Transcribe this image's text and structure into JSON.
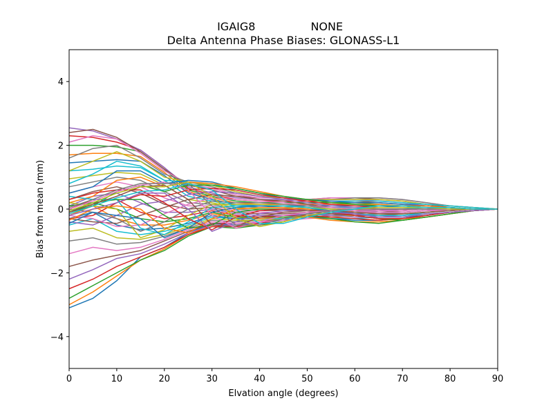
{
  "header": {
    "left": "IGAIG8",
    "right": "NONE"
  },
  "chart_data": {
    "type": "line",
    "title": "Delta Antenna Phase Biases: GLONASS-L1",
    "xlabel": "Elvation angle (degrees)",
    "ylabel": "Bias from mean (mm)",
    "xlim": [
      0,
      90
    ],
    "ylim": [
      -5,
      5
    ],
    "xticks": [
      0,
      10,
      20,
      30,
      40,
      50,
      60,
      70,
      80,
      90
    ],
    "yticks": [
      -4,
      -2,
      0,
      2,
      4
    ],
    "ytick_labels": [
      "−4",
      "−2",
      "0",
      "2",
      "4"
    ],
    "grid": false,
    "legend": "none",
    "colors": [
      "#1f77b4",
      "#ff7f0e",
      "#2ca02c",
      "#d62728",
      "#9467bd",
      "#8c564b",
      "#e377c2",
      "#7f7f7f",
      "#bcbd22",
      "#17becf"
    ],
    "x": [
      0,
      5,
      10,
      15,
      20,
      25,
      30,
      35,
      40,
      45,
      50,
      55,
      60,
      65,
      70,
      75,
      80,
      85,
      90
    ],
    "series": [
      {
        "values": [
          -3.1,
          -2.8,
          -2.25,
          -1.5,
          -1.2,
          -0.75,
          -0.45,
          -0.5,
          -0.45,
          -0.35,
          -0.15,
          -0.05,
          0.0,
          0.0,
          0.0,
          0.0,
          0.0,
          0.0,
          0.0
        ]
      },
      {
        "values": [
          -3.0,
          -2.6,
          -2.1,
          -1.6,
          -1.25,
          -0.8,
          -0.5,
          -0.55,
          -0.5,
          -0.4,
          -0.2,
          -0.1,
          -0.05,
          0.0,
          0.0,
          0.0,
          0.0,
          0.0,
          0.0
        ]
      },
      {
        "values": [
          -2.8,
          -2.4,
          -2.0,
          -1.6,
          -1.3,
          -0.85,
          -0.55,
          -0.6,
          -0.5,
          -0.4,
          -0.2,
          -0.15,
          -0.1,
          -0.05,
          0.0,
          0.0,
          0.0,
          0.0,
          0.0
        ]
      },
      {
        "values": [
          -2.5,
          -2.2,
          -1.8,
          -1.5,
          -1.2,
          -0.8,
          -0.55,
          -0.55,
          -0.45,
          -0.3,
          -0.2,
          -0.1,
          -0.05,
          0.0,
          0.0,
          0.0,
          0.0,
          0.0,
          0.0
        ]
      },
      {
        "values": [
          -2.2,
          -1.9,
          -1.55,
          -1.4,
          -1.1,
          -0.75,
          -0.5,
          -0.5,
          -0.4,
          -0.3,
          -0.2,
          -0.15,
          -0.1,
          -0.05,
          0.0,
          0.0,
          0.0,
          0.0,
          0.0
        ]
      },
      {
        "values": [
          -1.8,
          -1.6,
          -1.45,
          -1.3,
          -1.0,
          -0.7,
          -0.45,
          -0.45,
          -0.4,
          -0.3,
          -0.25,
          -0.2,
          -0.15,
          -0.1,
          -0.05,
          0.0,
          0.0,
          0.0,
          0.0
        ]
      },
      {
        "values": [
          -1.4,
          -1.2,
          -1.3,
          -1.2,
          -0.95,
          -0.65,
          -0.4,
          -0.45,
          -0.4,
          -0.35,
          -0.3,
          -0.25,
          -0.2,
          -0.15,
          -0.1,
          -0.05,
          0.0,
          0.0,
          0.0
        ]
      },
      {
        "values": [
          -1.0,
          -0.9,
          -1.1,
          -1.05,
          -0.85,
          -0.6,
          -0.35,
          -0.4,
          -0.35,
          -0.3,
          -0.25,
          -0.2,
          -0.2,
          -0.15,
          -0.1,
          -0.05,
          0.0,
          0.0,
          0.0
        ]
      },
      {
        "values": [
          -0.7,
          -0.6,
          -0.9,
          -0.95,
          -0.8,
          -0.55,
          -0.3,
          -0.35,
          -0.35,
          -0.3,
          -0.25,
          -0.25,
          -0.2,
          -0.2,
          -0.15,
          -0.1,
          -0.05,
          0.0,
          0.0
        ]
      },
      {
        "values": [
          -0.5,
          -0.3,
          -0.7,
          -0.8,
          -0.7,
          -0.5,
          -0.25,
          -0.3,
          -0.3,
          -0.3,
          -0.25,
          -0.3,
          -0.3,
          -0.25,
          -0.2,
          -0.1,
          -0.05,
          0.0,
          0.0
        ]
      },
      {
        "values": [
          -0.3,
          -0.1,
          -0.5,
          -0.65,
          -0.6,
          -0.45,
          -0.2,
          -0.3,
          -0.3,
          -0.25,
          -0.25,
          -0.3,
          -0.35,
          -0.35,
          -0.3,
          -0.2,
          -0.1,
          -0.05,
          0.0
        ]
      },
      {
        "values": [
          -0.2,
          0.1,
          -0.3,
          -0.5,
          -0.5,
          -0.35,
          -0.15,
          -0.25,
          -0.3,
          -0.25,
          -0.25,
          -0.35,
          -0.4,
          -0.4,
          -0.35,
          -0.25,
          -0.15,
          -0.05,
          0.0
        ]
      },
      {
        "values": [
          -0.1,
          0.2,
          0.0,
          -0.3,
          -0.4,
          -0.3,
          -0.1,
          -0.25,
          -0.25,
          -0.25,
          -0.2,
          -0.3,
          -0.4,
          -0.45,
          -0.35,
          -0.25,
          -0.15,
          -0.05,
          0.0
        ]
      },
      {
        "values": [
          0.0,
          0.3,
          0.3,
          -0.1,
          -0.3,
          -0.2,
          -0.05,
          -0.2,
          -0.25,
          -0.2,
          -0.2,
          -0.25,
          -0.3,
          -0.35,
          -0.3,
          -0.2,
          -0.1,
          -0.05,
          0.0
        ]
      },
      {
        "values": [
          0.1,
          0.4,
          0.5,
          0.2,
          -0.1,
          -0.1,
          0.0,
          -0.15,
          -0.2,
          -0.2,
          -0.15,
          -0.2,
          -0.25,
          -0.25,
          -0.2,
          -0.15,
          -0.1,
          -0.05,
          0.0
        ]
      },
      {
        "values": [
          0.3,
          0.55,
          0.7,
          0.5,
          0.15,
          0.0,
          0.05,
          -0.1,
          -0.15,
          -0.15,
          -0.1,
          -0.15,
          -0.2,
          -0.2,
          -0.15,
          -0.1,
          -0.05,
          0.0,
          0.0
        ]
      },
      {
        "values": [
          0.5,
          0.7,
          0.85,
          0.7,
          0.35,
          0.1,
          0.1,
          -0.05,
          -0.1,
          -0.1,
          -0.05,
          -0.1,
          -0.1,
          -0.1,
          -0.1,
          -0.05,
          -0.05,
          0.0,
          0.0
        ]
      },
      {
        "values": [
          0.7,
          0.85,
          1.0,
          0.9,
          0.55,
          0.2,
          0.15,
          0.0,
          -0.05,
          -0.05,
          0.0,
          -0.05,
          -0.05,
          -0.05,
          -0.05,
          0.0,
          0.0,
          0.0,
          0.0
        ]
      },
      {
        "values": [
          0.95,
          1.05,
          1.15,
          1.1,
          0.75,
          0.3,
          0.2,
          0.05,
          0.0,
          0.0,
          0.05,
          0.0,
          0.0,
          0.0,
          0.0,
          0.0,
          0.0,
          0.0,
          0.0
        ]
      },
      {
        "values": [
          1.2,
          1.25,
          1.35,
          1.3,
          0.9,
          0.4,
          0.25,
          0.1,
          0.05,
          0.05,
          0.1,
          0.05,
          0.05,
          0.05,
          0.05,
          0.0,
          0.0,
          0.0,
          0.0
        ]
      },
      {
        "values": [
          1.45,
          1.5,
          1.55,
          1.5,
          1.05,
          0.5,
          0.3,
          0.15,
          0.1,
          0.1,
          0.1,
          0.1,
          0.1,
          0.1,
          0.05,
          0.05,
          0.0,
          0.0,
          0.0
        ]
      },
      {
        "values": [
          1.7,
          1.75,
          1.75,
          1.65,
          1.15,
          0.55,
          0.35,
          0.2,
          0.15,
          0.15,
          0.15,
          0.15,
          0.15,
          0.1,
          0.1,
          0.05,
          0.05,
          0.0,
          0.0
        ]
      },
      {
        "values": [
          2.0,
          2.0,
          1.95,
          1.8,
          1.25,
          0.6,
          0.4,
          0.25,
          0.2,
          0.2,
          0.2,
          0.2,
          0.2,
          0.15,
          0.1,
          0.05,
          0.05,
          0.0,
          0.0
        ]
      },
      {
        "values": [
          2.3,
          2.25,
          2.1,
          1.85,
          1.3,
          0.65,
          0.45,
          0.3,
          0.25,
          0.25,
          0.25,
          0.25,
          0.25,
          0.2,
          0.15,
          0.1,
          0.05,
          0.0,
          0.0
        ]
      },
      {
        "values": [
          2.55,
          2.45,
          2.2,
          1.85,
          1.3,
          0.7,
          0.5,
          0.35,
          0.3,
          0.3,
          0.3,
          0.3,
          0.3,
          0.25,
          0.2,
          0.1,
          0.05,
          0.0,
          0.0
        ]
      },
      {
        "values": [
          2.4,
          2.5,
          2.25,
          1.8,
          1.25,
          0.75,
          0.6,
          0.4,
          0.35,
          0.35,
          0.3,
          0.35,
          0.35,
          0.3,
          0.25,
          0.15,
          0.05,
          0.0,
          0.0
        ]
      },
      {
        "values": [
          2.1,
          2.3,
          2.2,
          1.75,
          1.2,
          0.8,
          0.65,
          0.45,
          0.35,
          0.35,
          0.3,
          0.35,
          0.35,
          0.35,
          0.3,
          0.2,
          0.1,
          0.05,
          0.0
        ]
      },
      {
        "values": [
          1.6,
          1.9,
          2.0,
          1.6,
          1.1,
          0.85,
          0.7,
          0.5,
          0.4,
          0.35,
          0.3,
          0.3,
          0.35,
          0.35,
          0.3,
          0.2,
          0.1,
          0.05,
          0.0
        ]
      },
      {
        "values": [
          1.2,
          1.5,
          1.8,
          1.5,
          1.0,
          0.85,
          0.75,
          0.55,
          0.4,
          0.35,
          0.3,
          0.3,
          0.3,
          0.3,
          0.25,
          0.15,
          0.1,
          0.05,
          0.0
        ]
      },
      {
        "values": [
          0.8,
          1.1,
          1.5,
          1.35,
          0.9,
          0.85,
          0.8,
          0.6,
          0.45,
          0.35,
          0.3,
          0.25,
          0.25,
          0.25,
          0.2,
          0.15,
          0.1,
          0.05,
          0.0
        ]
      },
      {
        "values": [
          0.5,
          0.7,
          1.2,
          1.2,
          0.8,
          0.9,
          0.85,
          0.65,
          0.5,
          0.35,
          0.3,
          0.25,
          0.2,
          0.2,
          0.15,
          0.1,
          0.05,
          0.0,
          0.0
        ]
      },
      {
        "values": [
          0.2,
          0.4,
          0.9,
          1.0,
          0.7,
          0.85,
          0.8,
          0.7,
          0.55,
          0.4,
          0.3,
          0.2,
          0.15,
          0.15,
          0.1,
          0.1,
          0.05,
          0.0,
          0.0
        ]
      },
      {
        "values": [
          -0.1,
          0.1,
          0.55,
          0.75,
          0.55,
          0.75,
          0.75,
          0.65,
          0.5,
          0.4,
          0.3,
          0.2,
          0.15,
          0.1,
          0.1,
          0.05,
          0.05,
          0.0,
          0.0
        ]
      },
      {
        "values": [
          -0.3,
          -0.2,
          0.2,
          0.45,
          0.4,
          0.6,
          0.65,
          0.6,
          0.45,
          0.35,
          0.25,
          0.15,
          0.1,
          0.05,
          0.05,
          0.05,
          0.0,
          0.0,
          0.0
        ]
      },
      {
        "values": [
          -0.4,
          -0.5,
          -0.2,
          0.15,
          0.25,
          0.45,
          0.55,
          0.5,
          0.4,
          0.3,
          0.2,
          0.1,
          0.05,
          0.0,
          0.0,
          0.0,
          0.0,
          0.0,
          0.0
        ]
      },
      {
        "values": [
          -0.3,
          -0.4,
          -0.45,
          -0.2,
          0.05,
          0.3,
          0.45,
          0.4,
          0.3,
          0.25,
          0.15,
          0.05,
          0.0,
          0.0,
          0.0,
          0.0,
          0.0,
          0.0,
          0.0
        ]
      },
      {
        "values": [
          -0.2,
          -0.3,
          -0.55,
          -0.5,
          -0.15,
          0.15,
          0.35,
          0.3,
          0.25,
          0.2,
          0.1,
          0.05,
          0.0,
          -0.05,
          -0.05,
          0.0,
          0.0,
          0.0,
          0.0
        ]
      },
      {
        "values": [
          0.0,
          -0.1,
          -0.3,
          -0.7,
          -0.4,
          0.0,
          0.25,
          0.2,
          0.2,
          0.15,
          0.1,
          0.0,
          -0.05,
          -0.1,
          -0.1,
          -0.05,
          0.0,
          0.0,
          0.0
        ]
      },
      {
        "values": [
          0.2,
          0.1,
          0.0,
          -0.9,
          -0.65,
          -0.2,
          0.15,
          0.15,
          0.15,
          0.1,
          0.05,
          0.0,
          -0.1,
          -0.15,
          -0.15,
          -0.1,
          -0.05,
          0.0,
          0.0
        ]
      },
      {
        "values": [
          0.4,
          0.3,
          0.3,
          -0.6,
          -0.8,
          -0.4,
          0.05,
          0.1,
          0.1,
          0.1,
          0.05,
          -0.05,
          -0.15,
          -0.2,
          -0.2,
          -0.15,
          -0.1,
          -0.05,
          0.0
        ]
      },
      {
        "values": [
          -0.45,
          -0.1,
          -0.2,
          -0.3,
          -0.9,
          -0.6,
          -0.1,
          0.05,
          0.1,
          0.05,
          0.0,
          -0.05,
          -0.15,
          -0.25,
          -0.25,
          -0.2,
          -0.1,
          -0.05,
          0.0
        ]
      },
      {
        "values": [
          -0.35,
          0.0,
          0.1,
          0.0,
          -0.6,
          -0.75,
          -0.3,
          0.0,
          0.05,
          0.05,
          0.0,
          -0.1,
          -0.2,
          -0.3,
          -0.3,
          -0.25,
          -0.15,
          -0.05,
          0.0
        ]
      },
      {
        "values": [
          0.1,
          0.2,
          0.3,
          0.3,
          -0.2,
          -0.6,
          -0.5,
          -0.1,
          0.0,
          0.0,
          -0.05,
          -0.1,
          -0.2,
          -0.3,
          -0.35,
          -0.25,
          -0.15,
          -0.05,
          0.0
        ]
      },
      {
        "values": [
          0.3,
          0.5,
          0.6,
          0.6,
          0.2,
          -0.3,
          -0.65,
          -0.25,
          -0.05,
          0.0,
          -0.05,
          -0.1,
          -0.2,
          -0.3,
          -0.3,
          -0.2,
          -0.1,
          -0.05,
          0.0
        ]
      },
      {
        "values": [
          -0.2,
          0.0,
          0.2,
          0.5,
          0.5,
          0.0,
          -0.7,
          -0.4,
          -0.15,
          -0.05,
          -0.05,
          -0.1,
          -0.15,
          -0.25,
          -0.25,
          -0.15,
          -0.1,
          -0.05,
          0.0
        ]
      },
      {
        "values": [
          -0.1,
          0.15,
          0.4,
          0.7,
          0.75,
          0.3,
          -0.5,
          -0.55,
          -0.25,
          -0.1,
          -0.05,
          -0.05,
          -0.1,
          -0.15,
          -0.15,
          -0.1,
          -0.05,
          0.0,
          0.0
        ]
      },
      {
        "values": [
          0.0,
          0.25,
          0.55,
          0.75,
          0.85,
          0.6,
          -0.2,
          -0.6,
          -0.4,
          -0.2,
          -0.1,
          -0.05,
          -0.05,
          -0.1,
          -0.1,
          -0.05,
          0.0,
          0.0,
          0.0
        ]
      },
      {
        "values": [
          0.05,
          0.3,
          0.6,
          0.8,
          0.8,
          0.8,
          0.1,
          -0.5,
          -0.5,
          -0.3,
          -0.15,
          -0.05,
          0.0,
          0.0,
          0.0,
          0.0,
          0.0,
          0.0,
          0.0
        ]
      },
      {
        "values": [
          -0.05,
          0.2,
          0.5,
          0.7,
          0.7,
          0.85,
          0.4,
          -0.3,
          -0.55,
          -0.4,
          -0.2,
          -0.1,
          0.0,
          0.05,
          0.05,
          0.05,
          0.0,
          0.0,
          0.0
        ]
      },
      {
        "values": [
          -0.15,
          0.1,
          0.35,
          0.55,
          0.6,
          0.8,
          0.6,
          0.0,
          -0.45,
          -0.45,
          -0.25,
          -0.1,
          0.0,
          0.1,
          0.1,
          0.05,
          0.05,
          0.0,
          0.0
        ]
      }
    ]
  }
}
